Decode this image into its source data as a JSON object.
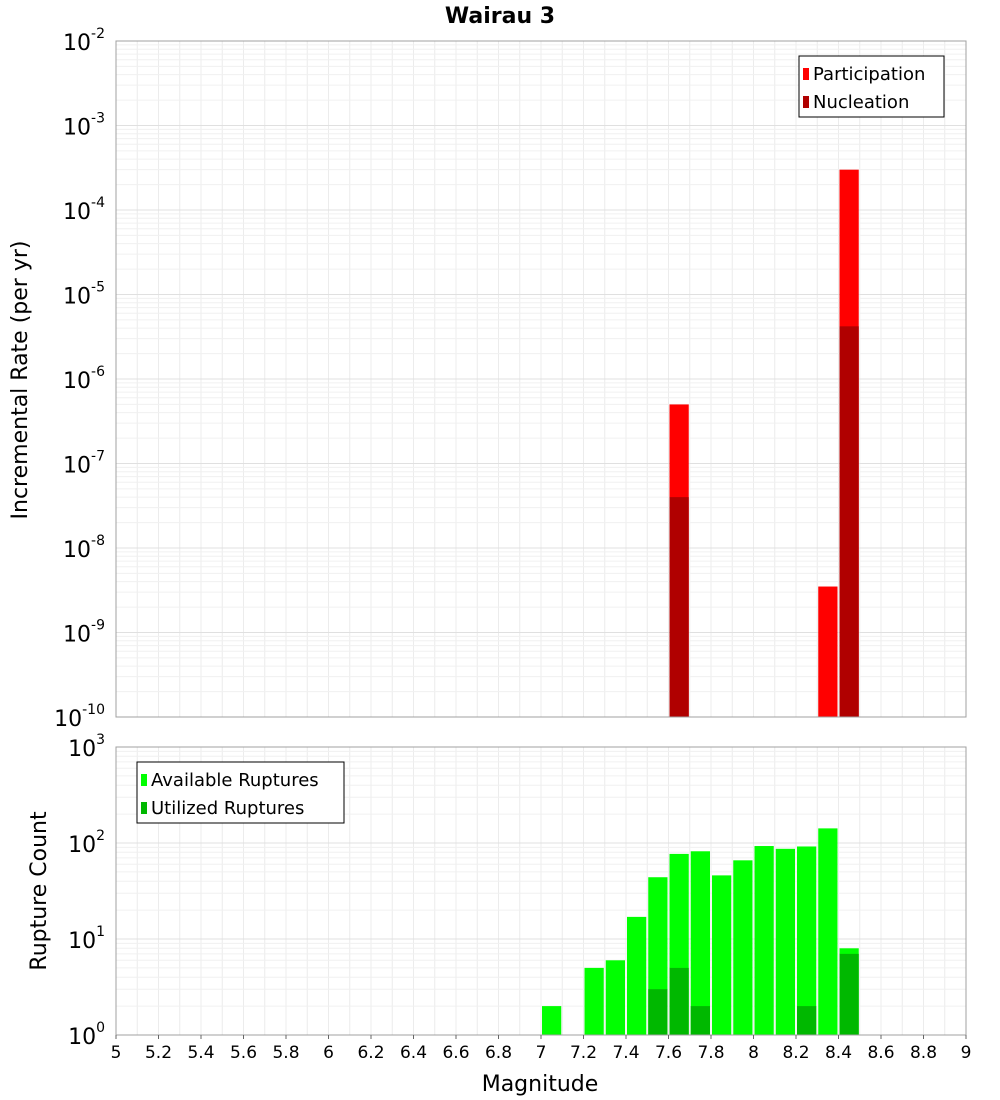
{
  "title": "Wairau 3",
  "colors": {
    "participation": "#ff0000",
    "nucleation": "#b00000",
    "available": "#00ff00",
    "utilized": "#00b800"
  },
  "chart_data": [
    {
      "type": "bar",
      "name": "top",
      "ylabel": "Incremental Rate (per yr)",
      "xlim": [
        5,
        9
      ],
      "yscale": "log",
      "ylim_exp": [
        -10,
        -2
      ],
      "y_tick_exps": [
        "-10",
        "-9",
        "-8",
        "-7",
        "-6",
        "-5",
        "-4",
        "-3",
        "-2"
      ],
      "grid": true,
      "legend": {
        "placement": "top-right",
        "entries": [
          "Participation",
          "Nucleation"
        ]
      },
      "bar_width": 0.1,
      "series": [
        {
          "name": "Participation",
          "x": [
            7.65,
            8.35,
            8.45
          ],
          "values": [
            5e-07,
            3.5e-09,
            0.0003
          ]
        },
        {
          "name": "Nucleation",
          "x": [
            7.65,
            8.45
          ],
          "values": [
            4e-08,
            4.2e-06
          ]
        }
      ]
    },
    {
      "type": "bar",
      "name": "bottom",
      "xlabel": "Magnitude",
      "ylabel": "Rupture Count",
      "xlim": [
        5,
        9
      ],
      "x_ticks": [
        "5",
        "5.2",
        "5.4",
        "5.6",
        "5.8",
        "6",
        "6.2",
        "6.4",
        "6.6",
        "6.8",
        "7",
        "7.2",
        "7.4",
        "7.6",
        "7.8",
        "8",
        "8.2",
        "8.4",
        "8.6",
        "8.8",
        "9"
      ],
      "yscale": "log",
      "ylim_exp": [
        0,
        3
      ],
      "y_tick_exps": [
        "0",
        "1",
        "2",
        "3"
      ],
      "grid": true,
      "legend": {
        "placement": "top-left",
        "entries": [
          "Available Ruptures",
          "Utilized Ruptures"
        ]
      },
      "bar_width": 0.1,
      "series": [
        {
          "name": "Available Ruptures",
          "x": [
            6.55,
            6.95,
            7.05,
            7.15,
            7.25,
            7.35,
            7.45,
            7.55,
            7.65,
            7.75,
            7.85,
            7.95,
            8.05,
            8.15,
            8.25,
            8.35,
            8.45
          ],
          "values": [
            1,
            1,
            2,
            1,
            5,
            6,
            17,
            44,
            77,
            82,
            46,
            66,
            93,
            87,
            92,
            142,
            8
          ]
        },
        {
          "name": "Utilized Ruptures",
          "x": [
            7.55,
            7.65,
            7.75,
            7.85,
            7.95,
            8.05,
            8.15,
            8.25,
            8.35,
            8.45
          ],
          "values": [
            3,
            5,
            2,
            1,
            1,
            1,
            1,
            2,
            1,
            7
          ]
        }
      ]
    }
  ]
}
